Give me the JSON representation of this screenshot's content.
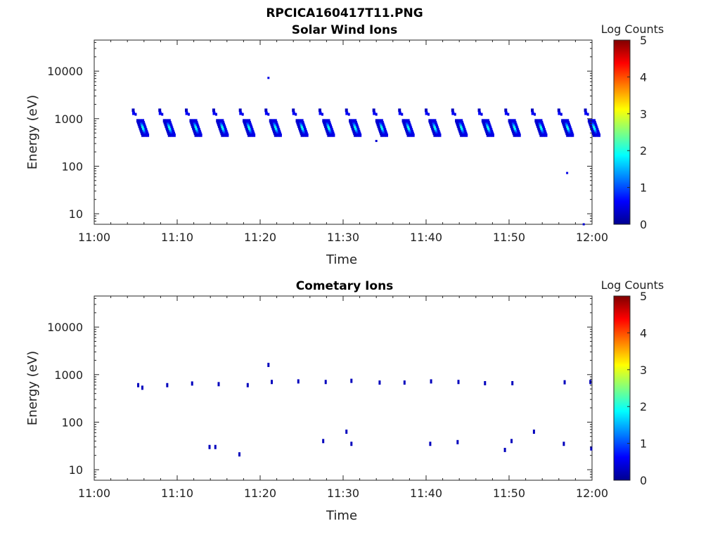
{
  "figure_title": "RPCICA160417T11.PNG",
  "colorbar": {
    "label": "Log Counts",
    "range": [
      0,
      5
    ],
    "ticks": [
      "0",
      "1",
      "2",
      "3",
      "4",
      "5"
    ],
    "colormap": "jet"
  },
  "chart_data": [
    {
      "type": "heatmap",
      "title": "Solar Wind Ions",
      "xlabel": "Time",
      "ylabel": "Energy (eV)",
      "yscale": "log",
      "xlim": [
        "11:00",
        "12:00"
      ],
      "ylim": [
        6,
        45000
      ],
      "x_ticks": [
        "11:00",
        "11:10",
        "11:20",
        "11:30",
        "11:40",
        "11:50",
        "12:00"
      ],
      "y_ticks": [
        "10",
        "100",
        "1000",
        "10000"
      ],
      "grid": false,
      "upper_band_times_min": [
        4.7,
        7.9,
        11.1,
        14.4,
        17.6,
        20.7,
        24.0,
        27.2,
        30.4,
        33.7,
        36.8,
        40.0,
        43.2,
        46.4,
        49.6,
        52.8,
        56.0,
        59.2
      ],
      "main_band_times_min": [
        5.5,
        8.7,
        11.9,
        15.1,
        18.3,
        21.5,
        24.7,
        27.9,
        31.1,
        34.3,
        37.5,
        40.7,
        43.9,
        47.1,
        50.3,
        53.5,
        56.7,
        59.9
      ],
      "upper_band_energy_eV": [
        1500,
        1300
      ],
      "main_band_energy_eV": [
        900,
        450
      ],
      "peak_log_counts": 2.2,
      "isolated_points": [
        {
          "time_min": 21.0,
          "energy_eV": 7200,
          "log_counts": 0.5
        },
        {
          "time_min": 34.0,
          "energy_eV": 340,
          "log_counts": 0.4
        },
        {
          "time_min": 57.0,
          "energy_eV": 72,
          "log_counts": 0.5
        },
        {
          "time_min": 59.0,
          "energy_eV": 6,
          "log_counts": 0.4
        }
      ]
    },
    {
      "type": "heatmap",
      "title": "Cometary Ions",
      "xlabel": "Time",
      "ylabel": "Energy (eV)",
      "yscale": "log",
      "xlim": [
        "11:00",
        "12:00"
      ],
      "ylim": [
        6,
        45000
      ],
      "x_ticks": [
        "11:00",
        "11:10",
        "11:20",
        "11:30",
        "11:40",
        "11:50",
        "12:00"
      ],
      "y_ticks": [
        "10",
        "100",
        "1000",
        "10000"
      ],
      "grid": false,
      "points": [
        {
          "time_min": 5.3,
          "energy_eV": 600,
          "log_counts": 0.3
        },
        {
          "time_min": 5.8,
          "energy_eV": 530,
          "log_counts": 0.3
        },
        {
          "time_min": 8.8,
          "energy_eV": 600,
          "log_counts": 0.3
        },
        {
          "time_min": 11.8,
          "energy_eV": 650,
          "log_counts": 0.3
        },
        {
          "time_min": 15.0,
          "energy_eV": 630,
          "log_counts": 0.3
        },
        {
          "time_min": 18.5,
          "energy_eV": 600,
          "log_counts": 0.3
        },
        {
          "time_min": 21.0,
          "energy_eV": 1600,
          "log_counts": 0.3
        },
        {
          "time_min": 21.4,
          "energy_eV": 700,
          "log_counts": 0.3
        },
        {
          "time_min": 24.6,
          "energy_eV": 720,
          "log_counts": 0.3
        },
        {
          "time_min": 27.9,
          "energy_eV": 700,
          "log_counts": 0.3
        },
        {
          "time_min": 31.0,
          "energy_eV": 740,
          "log_counts": 0.3
        },
        {
          "time_min": 34.4,
          "energy_eV": 680,
          "log_counts": 0.3
        },
        {
          "time_min": 37.4,
          "energy_eV": 680,
          "log_counts": 0.3
        },
        {
          "time_min": 40.6,
          "energy_eV": 720,
          "log_counts": 0.3
        },
        {
          "time_min": 43.9,
          "energy_eV": 700,
          "log_counts": 0.3
        },
        {
          "time_min": 47.1,
          "energy_eV": 660,
          "log_counts": 0.3
        },
        {
          "time_min": 50.4,
          "energy_eV": 660,
          "log_counts": 0.3
        },
        {
          "time_min": 56.7,
          "energy_eV": 690,
          "log_counts": 0.3
        },
        {
          "time_min": 59.8,
          "energy_eV": 700,
          "log_counts": 0.3
        },
        {
          "time_min": 13.9,
          "energy_eV": 30,
          "log_counts": 0.3
        },
        {
          "time_min": 14.6,
          "energy_eV": 30,
          "log_counts": 0.3
        },
        {
          "time_min": 17.5,
          "energy_eV": 21,
          "log_counts": 0.3
        },
        {
          "time_min": 27.6,
          "energy_eV": 40,
          "log_counts": 0.3
        },
        {
          "time_min": 30.4,
          "energy_eV": 63,
          "log_counts": 0.3
        },
        {
          "time_min": 31.0,
          "energy_eV": 35,
          "log_counts": 0.3
        },
        {
          "time_min": 40.5,
          "energy_eV": 35,
          "log_counts": 0.3
        },
        {
          "time_min": 43.8,
          "energy_eV": 38,
          "log_counts": 0.3
        },
        {
          "time_min": 49.5,
          "energy_eV": 26,
          "log_counts": 0.3
        },
        {
          "time_min": 50.3,
          "energy_eV": 40,
          "log_counts": 0.3
        },
        {
          "time_min": 53.0,
          "energy_eV": 63,
          "log_counts": 0.3
        },
        {
          "time_min": 56.6,
          "energy_eV": 35,
          "log_counts": 0.3
        },
        {
          "time_min": 59.9,
          "energy_eV": 28,
          "log_counts": 0.3
        }
      ]
    }
  ]
}
